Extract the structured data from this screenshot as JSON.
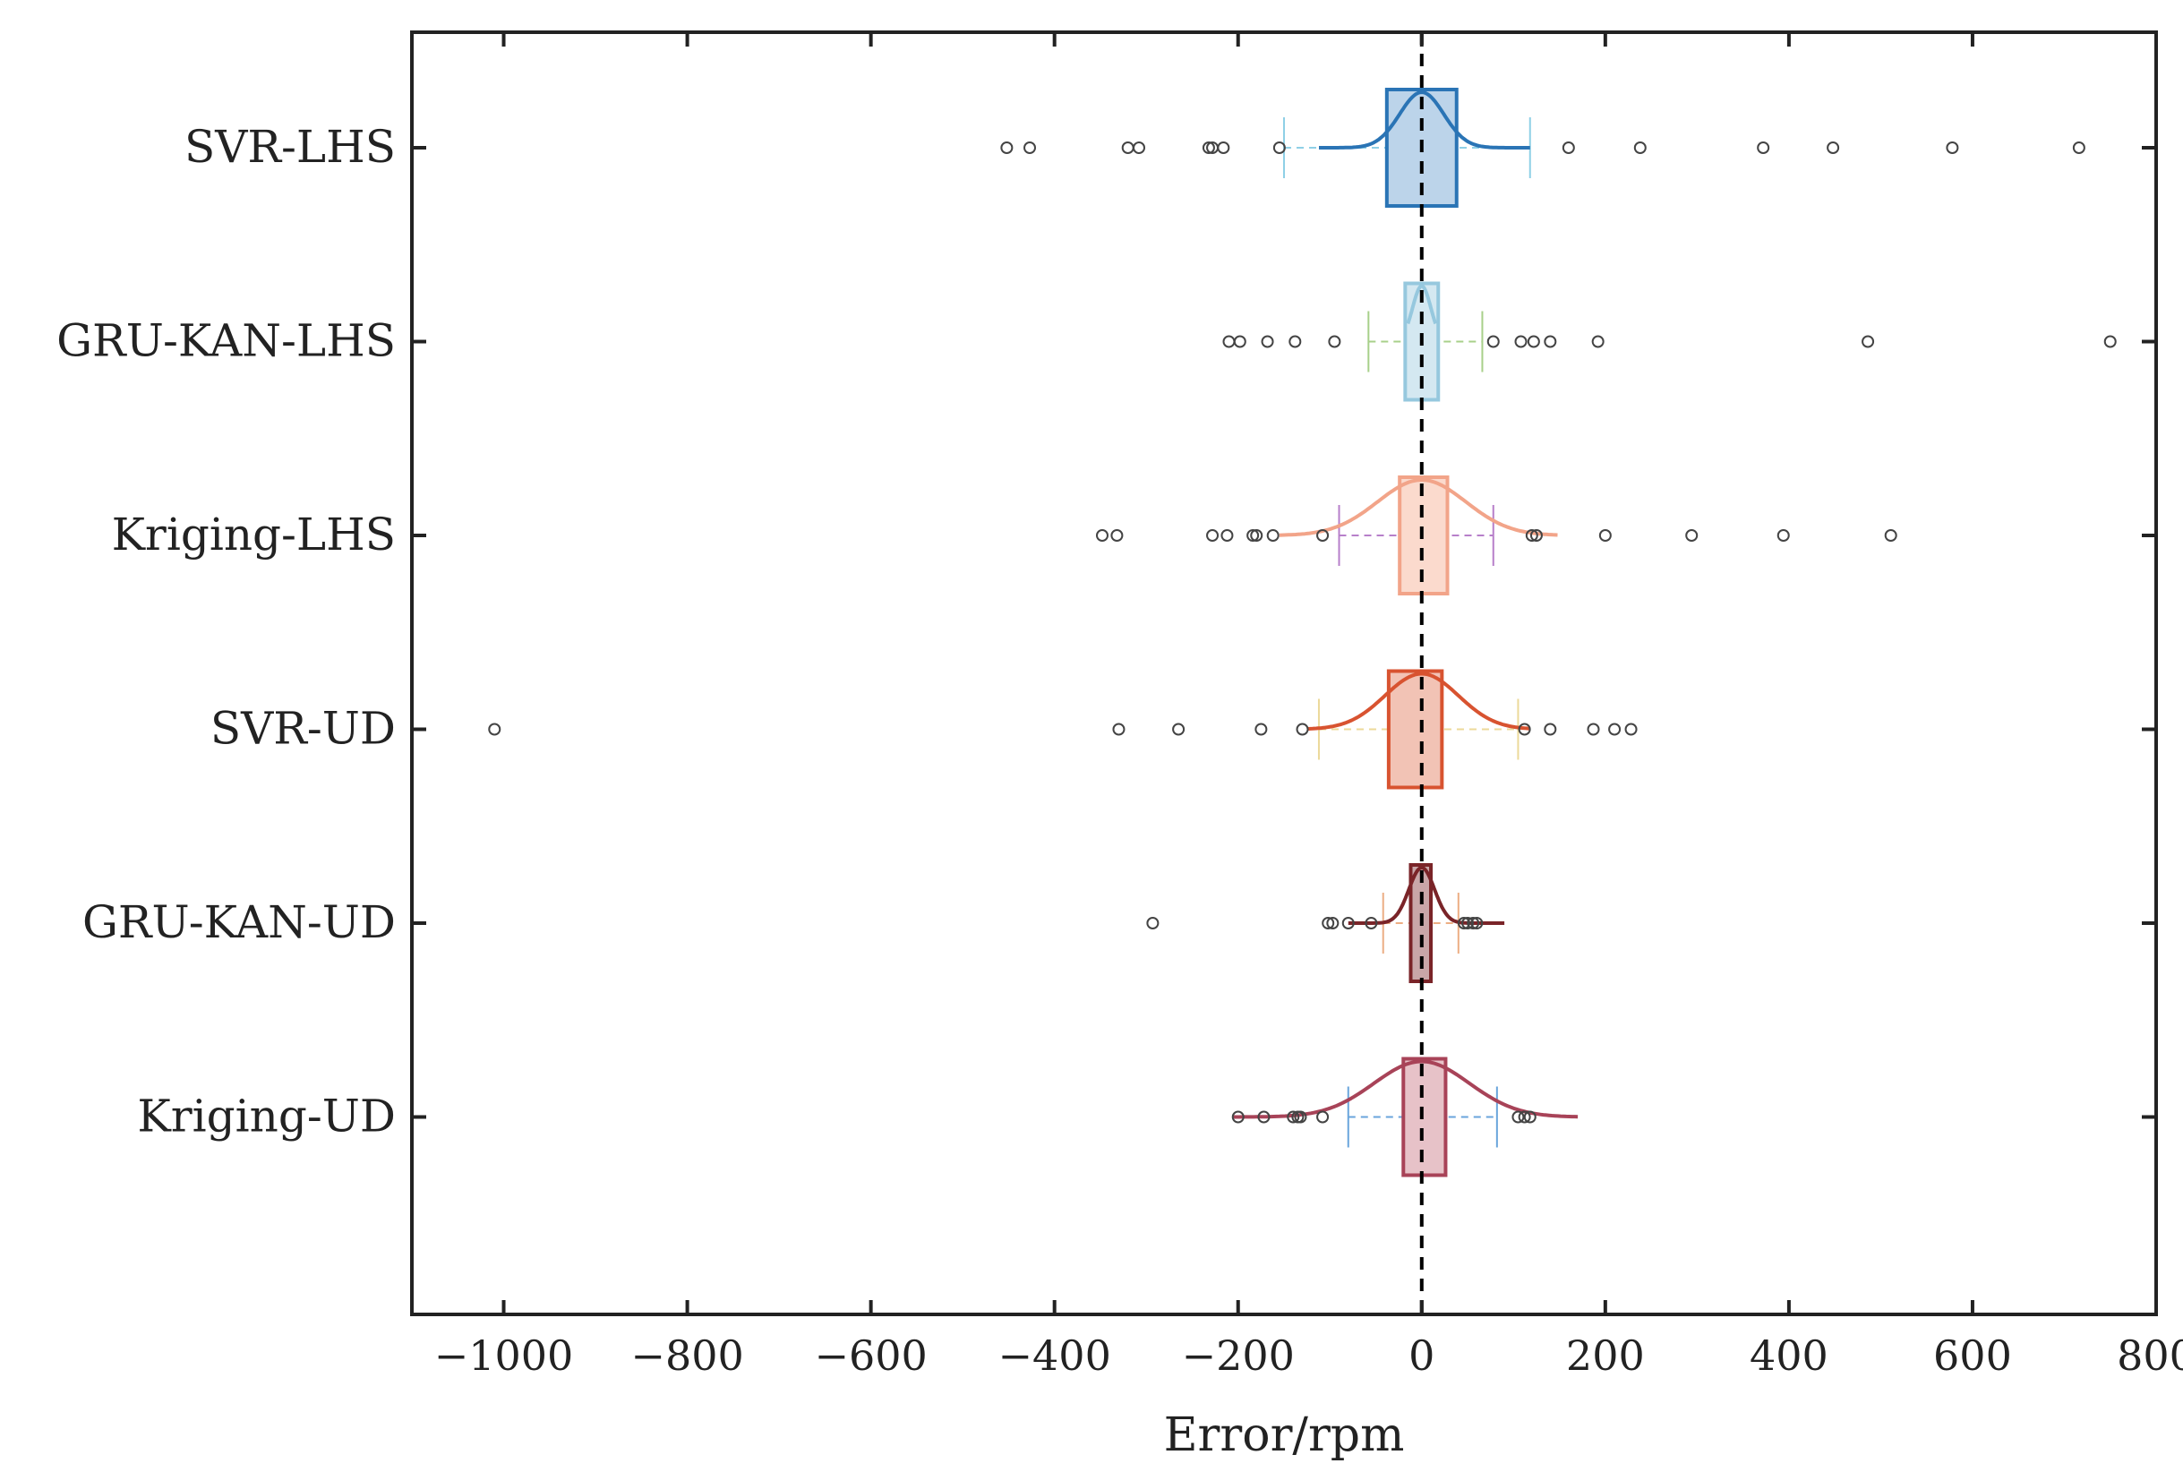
{
  "chart_data": {
    "type": "box",
    "orientation": "horizontal",
    "title": "",
    "xlabel": "Error/rpm",
    "ylabel": "",
    "xlim": [
      -1100,
      800
    ],
    "xticks": [
      -1000,
      -800,
      -600,
      -400,
      -200,
      0,
      200,
      400,
      600,
      800
    ],
    "xtick_labels": [
      "−1000",
      "−800",
      "−600",
      "−400",
      "−200",
      "0",
      "200",
      "400",
      "600",
      "800"
    ],
    "reference_line": 0,
    "series": [
      {
        "name": "SVR-LHS",
        "color": "#2a74b5",
        "fill": "#bcd4ea",
        "whisker_color": "#8fd0e6",
        "q1": -38,
        "median": 0,
        "q3": 38,
        "whisker_low": -150,
        "whisker_high": 118,
        "density_range": [
          -112,
          118
        ],
        "density_sigma": 24,
        "outliers": [
          -452,
          -427,
          -320,
          -308,
          -232,
          -228,
          -216,
          -155,
          160,
          238,
          372,
          448,
          578,
          716
        ]
      },
      {
        "name": "GRU-KAN-LHS",
        "color": "#96c8de",
        "fill": "#d4e8f1",
        "whisker_color": "#a8d08a",
        "q1": -18,
        "median": 0,
        "q3": 18,
        "whisker_low": -58,
        "whisker_high": 66,
        "density_range": [
          -15,
          15
        ],
        "density_sigma": 10,
        "outliers": [
          -210,
          -198,
          -168,
          -138,
          -95,
          78,
          108,
          122,
          140,
          192,
          486,
          750
        ]
      },
      {
        "name": "Kriging-LHS",
        "color": "#f2a489",
        "fill": "#fbdacd",
        "whisker_color": "#b77fca",
        "q1": -24,
        "median": 0,
        "q3": 28,
        "whisker_low": -90,
        "whisker_high": 78,
        "density_range": [
          -155,
          148
        ],
        "density_sigma": 48,
        "outliers": [
          -348,
          -332,
          -228,
          -212,
          -184,
          -180,
          -162,
          -108,
          120,
          125,
          200,
          294,
          394,
          511
        ]
      },
      {
        "name": "SVR-UD",
        "color": "#d85330",
        "fill": "#f2c3b5",
        "whisker_color": "#ecd99a",
        "q1": -36,
        "median": 0,
        "q3": 22,
        "whisker_low": -112,
        "whisker_high": 105,
        "density_range": [
          -125,
          118
        ],
        "density_sigma": 40,
        "outliers": [
          -1010,
          -330,
          -265,
          -175,
          -130,
          112,
          140,
          187,
          210,
          228
        ]
      },
      {
        "name": "GRU-KAN-UD",
        "color": "#7a2428",
        "fill": "#c9a6a8",
        "whisker_color": "#ecae84",
        "q1": -12,
        "median": 0,
        "q3": 10,
        "whisker_low": -42,
        "whisker_high": 40,
        "density_range": [
          -80,
          90
        ],
        "density_sigma": 14,
        "outliers": [
          -293,
          -102,
          -97,
          -80,
          -55,
          46,
          50,
          56,
          60
        ]
      },
      {
        "name": "Kriging-UD",
        "color": "#a84358",
        "fill": "#e7c2c8",
        "whisker_color": "#6aa5dc",
        "q1": -20,
        "median": 0,
        "q3": 26,
        "whisker_low": -80,
        "whisker_high": 82,
        "density_range": [
          -205,
          170
        ],
        "density_sigma": 52,
        "outliers": [
          -200,
          -172,
          -140,
          -135,
          -132,
          -108,
          105,
          112,
          118
        ]
      }
    ]
  }
}
